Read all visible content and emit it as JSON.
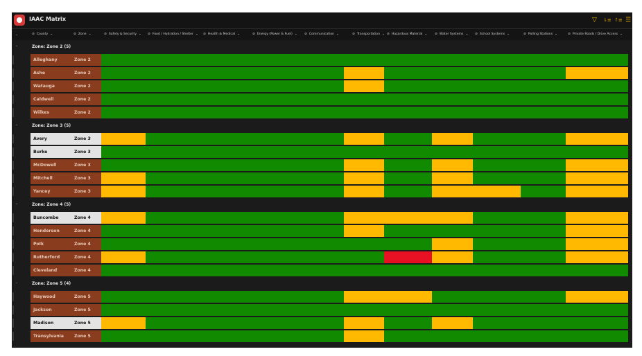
{
  "app": {
    "title": "IAAC Matrix",
    "star_icon": "star-outline-icon"
  },
  "toolbar": {
    "filter_icon": "filter-icon",
    "sort_asc_icon": "sort-ascending-icon",
    "sort_desc_icon": "sort-descending-icon",
    "more_icon": "more-lines-icon",
    "filter_glyph": "▽",
    "sort_asc_glyph": "⇂≡",
    "sort_desc_glyph": "↾≡",
    "more_glyph": "☰"
  },
  "columns": [
    "County",
    "Zone",
    "Safety & Security",
    "Food / Hydration / Shelter",
    "Health & Medical",
    "Energy (Power & Fuel)",
    "Communication",
    "Transportation",
    "Hazardous Material",
    "Water Systems",
    "School Systems",
    "Polling Stations",
    "Private Roads / Drive Access"
  ],
  "column_prefix": "⊘",
  "column_suffix": "⌄",
  "colors": {
    "green": "#118a00",
    "yellow": "#ffb900",
    "red": "#e81123",
    "brown": "#8a3d1e",
    "white": "#e3e3e3"
  },
  "groups": [
    {
      "label": "Zone: Zone 2 (5)",
      "rows": [
        {
          "county": "Alleghany",
          "zone": "Zone 2",
          "style": "brown",
          "status": [
            "g",
            "g",
            "g",
            "g",
            "g",
            "g",
            "g",
            "g",
            "g",
            "g",
            "g"
          ]
        },
        {
          "county": "Ashe",
          "zone": "Zone 2",
          "style": "brown",
          "status": [
            "g",
            "g",
            "g",
            "g",
            "g",
            "y",
            "g",
            "g",
            "g",
            "g",
            "y"
          ]
        },
        {
          "county": "Watauga",
          "zone": "Zone 2",
          "style": "brown",
          "status": [
            "g",
            "g",
            "g",
            "g",
            "g",
            "y",
            "g",
            "g",
            "g",
            "g",
            "g"
          ]
        },
        {
          "county": "Caldwell",
          "zone": "Zone 2",
          "style": "brown",
          "status": [
            "g",
            "g",
            "g",
            "g",
            "g",
            "g",
            "g",
            "g",
            "g",
            "g",
            "g"
          ]
        },
        {
          "county": "Wilkes",
          "zone": "Zone 2",
          "style": "brown",
          "status": [
            "g",
            "g",
            "g",
            "g",
            "g",
            "g",
            "g",
            "g",
            "g",
            "g",
            "g"
          ]
        }
      ]
    },
    {
      "label": "Zone: Zone 3 (5)",
      "rows": [
        {
          "county": "Avery",
          "zone": "Zone 3",
          "style": "white",
          "status": [
            "y",
            "g",
            "g",
            "g",
            "g",
            "y",
            "g",
            "y",
            "g",
            "g",
            "y"
          ]
        },
        {
          "county": "Burke",
          "zone": "Zone 3",
          "style": "white",
          "status": [
            "g",
            "g",
            "g",
            "g",
            "g",
            "g",
            "g",
            "g",
            "g",
            "g",
            "g"
          ]
        },
        {
          "county": "McDowell",
          "zone": "Zone 3",
          "style": "brown",
          "status": [
            "g",
            "g",
            "g",
            "g",
            "g",
            "y",
            "g",
            "y",
            "g",
            "g",
            "y"
          ]
        },
        {
          "county": "Mitchell",
          "zone": "Zone 3",
          "style": "brown",
          "status": [
            "y",
            "g",
            "g",
            "g",
            "g",
            "y",
            "g",
            "y",
            "g",
            "g",
            "y"
          ]
        },
        {
          "county": "Yancey",
          "zone": "Zone 3",
          "style": "brown",
          "status": [
            "y",
            "g",
            "g",
            "g",
            "g",
            "y",
            "g",
            "y",
            "y",
            "g",
            "y"
          ]
        }
      ]
    },
    {
      "label": "Zone: Zone 4 (5)",
      "rows": [
        {
          "county": "Buncombe",
          "zone": "Zone 4",
          "style": "white",
          "status": [
            "y",
            "g",
            "g",
            "g",
            "g",
            "y",
            "y",
            "y",
            "g",
            "g",
            "y"
          ]
        },
        {
          "county": "Henderson",
          "zone": "Zone 4",
          "style": "brown",
          "status": [
            "g",
            "g",
            "g",
            "g",
            "g",
            "y",
            "g",
            "g",
            "g",
            "g",
            "y"
          ]
        },
        {
          "county": "Polk",
          "zone": "Zone 4",
          "style": "brown",
          "status": [
            "g",
            "g",
            "g",
            "g",
            "g",
            "g",
            "g",
            "y",
            "g",
            "g",
            "y"
          ]
        },
        {
          "county": "Rutherford",
          "zone": "Zone 4",
          "style": "brown",
          "status": [
            "y",
            "g",
            "g",
            "g",
            "g",
            "g",
            "r",
            "y",
            "g",
            "g",
            "y"
          ]
        },
        {
          "county": "Cleveland",
          "zone": "Zone 4",
          "style": "brown",
          "status": [
            "g",
            "g",
            "g",
            "g",
            "g",
            "g",
            "g",
            "g",
            "g",
            "g",
            "g"
          ]
        }
      ]
    },
    {
      "label": "Zone: Zone 5 (4)",
      "rows": [
        {
          "county": "Haywood",
          "zone": "Zone 5",
          "style": "brown",
          "status": [
            "g",
            "g",
            "g",
            "g",
            "g",
            "y",
            "y",
            "g",
            "g",
            "g",
            "y"
          ]
        },
        {
          "county": "Jackson",
          "zone": "Zone 5",
          "style": "brown",
          "status": [
            "g",
            "g",
            "g",
            "g",
            "g",
            "g",
            "g",
            "g",
            "g",
            "g",
            "g"
          ]
        },
        {
          "county": "Madison",
          "zone": "Zone 5",
          "style": "white",
          "status": [
            "y",
            "g",
            "g",
            "g",
            "g",
            "y",
            "g",
            "y",
            "g",
            "g",
            "g"
          ]
        },
        {
          "county": "Transylvania",
          "zone": "Zone 5",
          "style": "brown",
          "status": [
            "g",
            "g",
            "g",
            "g",
            "g",
            "y",
            "g",
            "g",
            "g",
            "g",
            "g"
          ]
        }
      ]
    }
  ]
}
